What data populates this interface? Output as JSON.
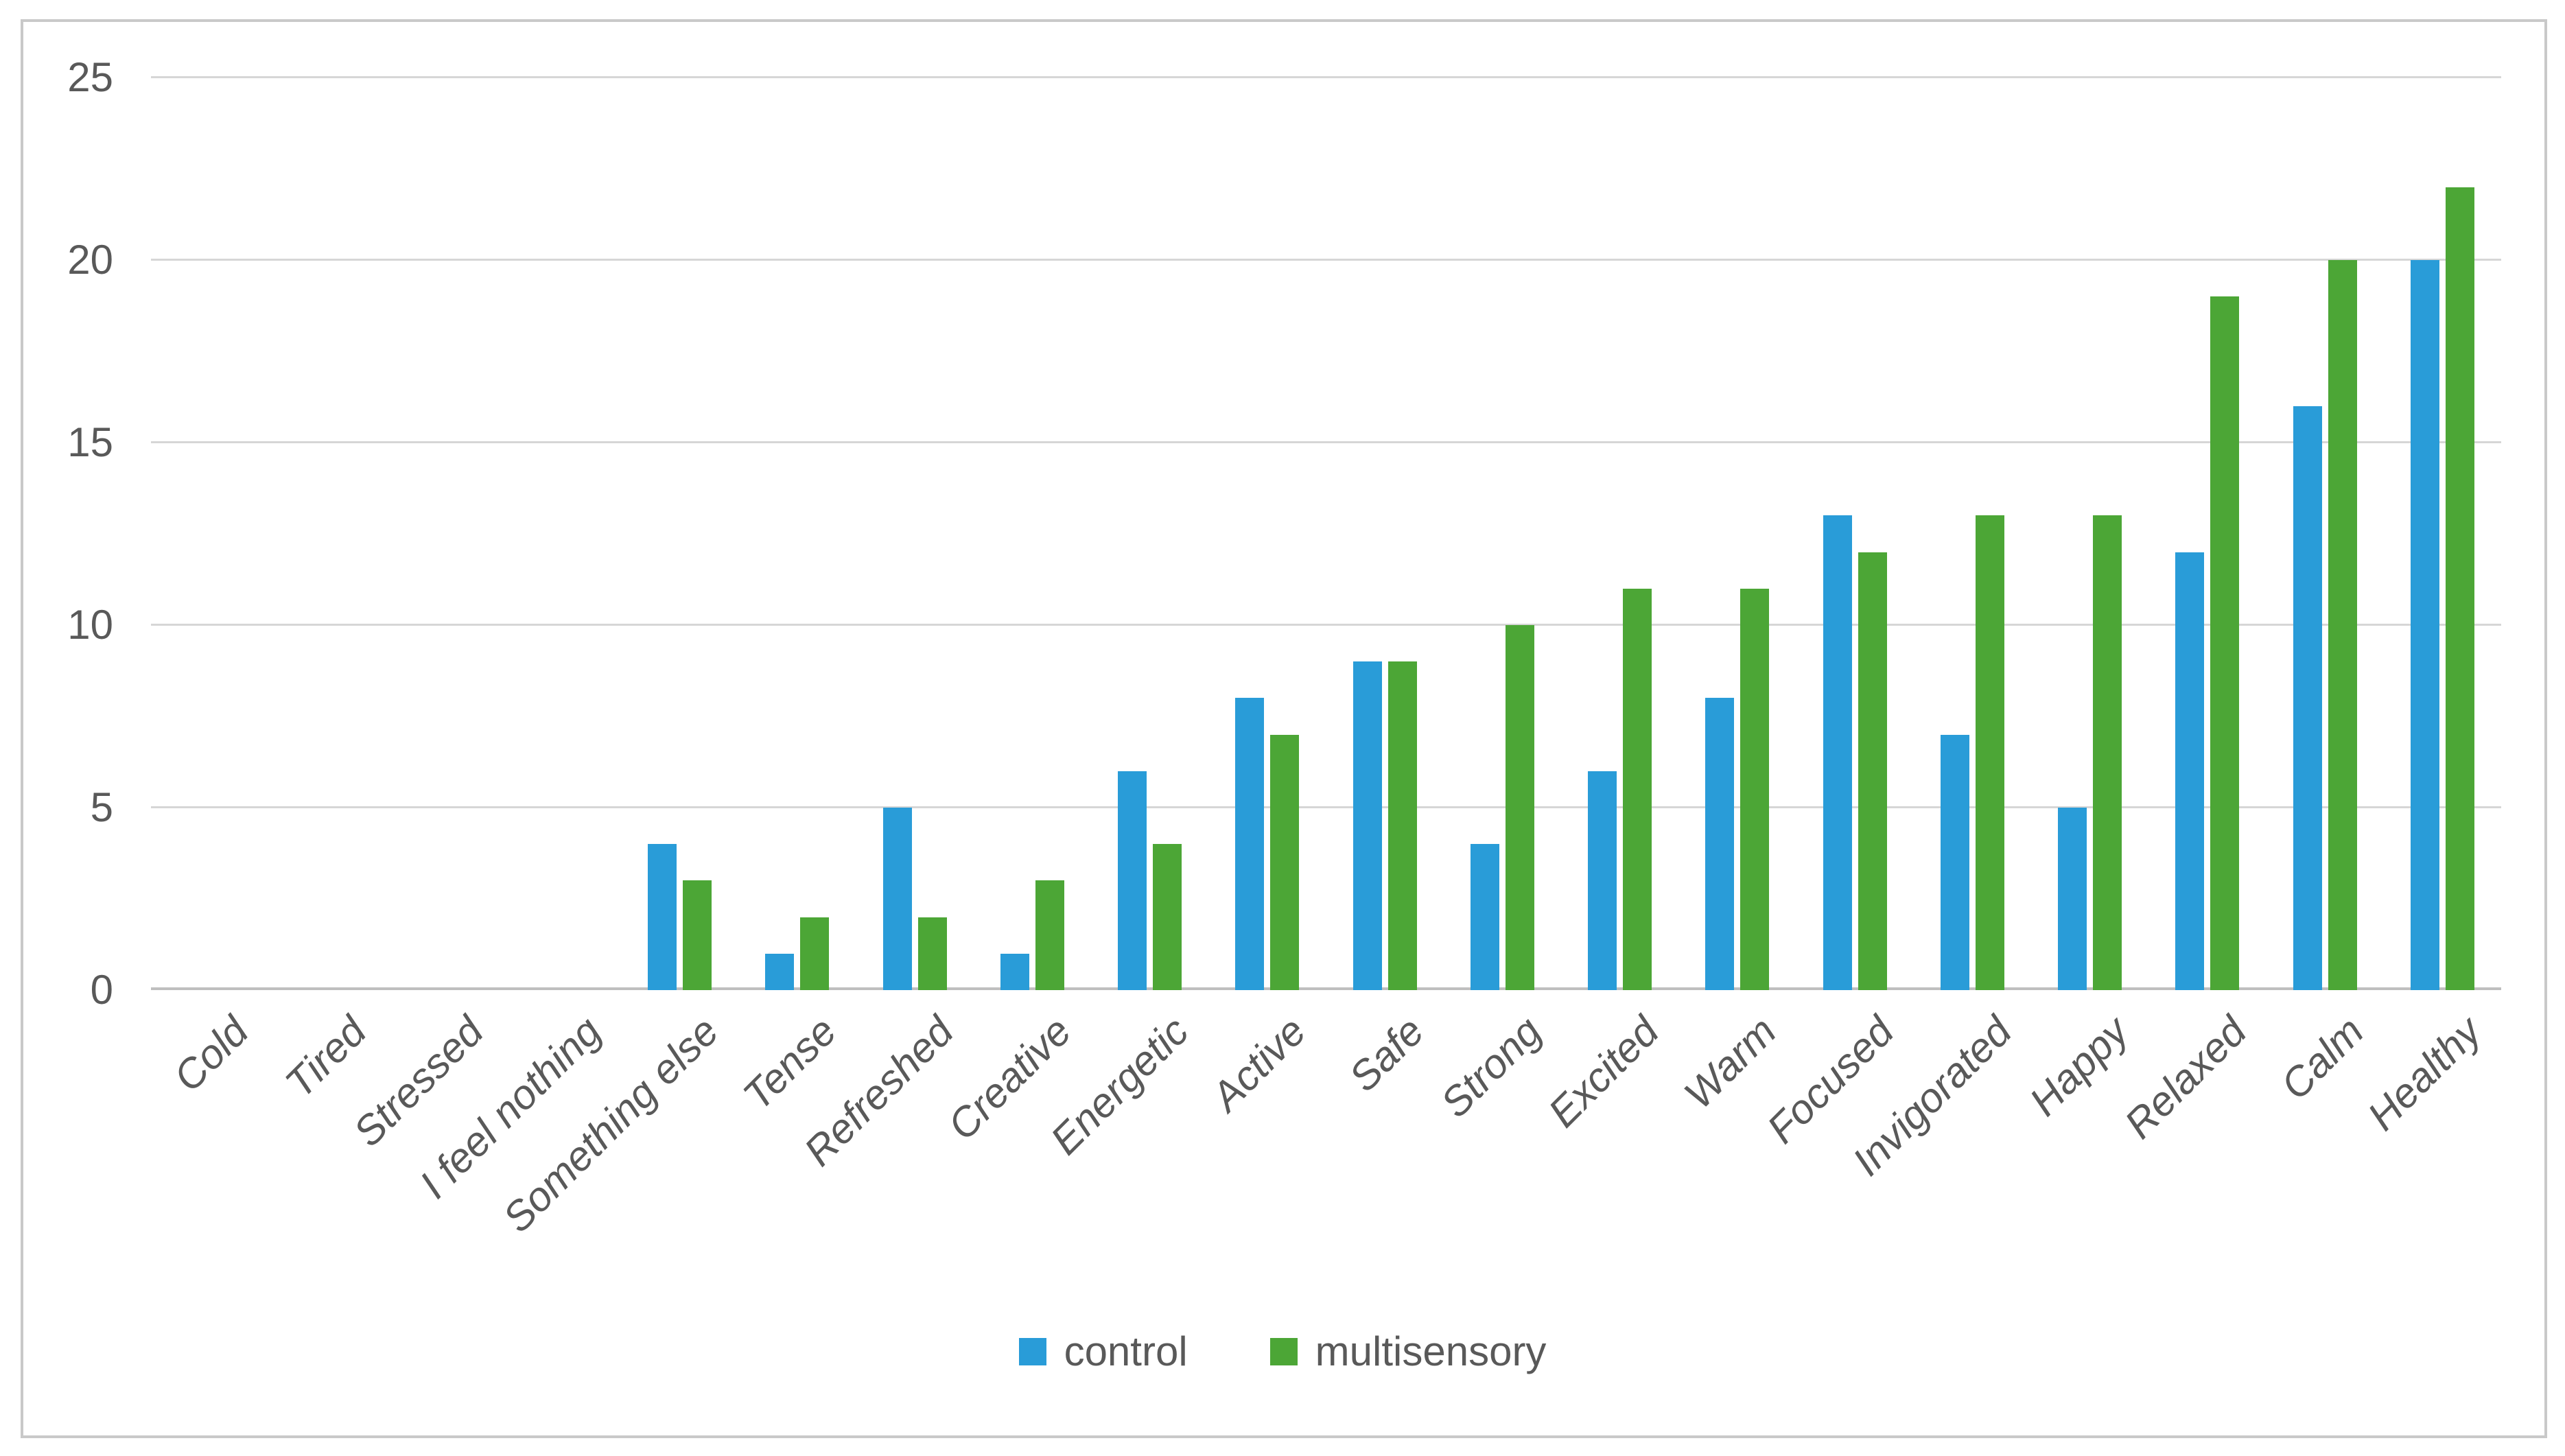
{
  "figure": {
    "background_color": "#ffffff",
    "frame_border_color": "#c9c9c9",
    "gridline_color": "#d6d6d6",
    "axis_line_color": "#bfbfbf",
    "tick_label_color": "#595959"
  },
  "chart_data": {
    "type": "bar",
    "title": "",
    "xlabel": "",
    "ylabel": "",
    "ylim": [
      0,
      25
    ],
    "yticks": [
      0,
      5,
      10,
      15,
      20,
      25
    ],
    "grid": "horizontal",
    "legend_position": "bottom",
    "categories": [
      "Cold",
      "Tired",
      "Stressed",
      "I feel nothing",
      "Something else",
      "Tense",
      "Refreshed",
      "Creative",
      "Energetic",
      "Active",
      "Safe",
      "Strong",
      "Excited",
      "Warm",
      "Focused",
      "Invigorated",
      "Happy",
      "Relaxed",
      "Calm",
      "Healthy"
    ],
    "series": [
      {
        "name": "control",
        "color": "#299cd8",
        "values": [
          0,
          0,
          0,
          0,
          4,
          1,
          5,
          1,
          6,
          8,
          9,
          4,
          6,
          8,
          13,
          7,
          5,
          12,
          16,
          20
        ]
      },
      {
        "name": "multisensory",
        "color": "#4ca636",
        "values": [
          0,
          0,
          0,
          0,
          3,
          2,
          2,
          3,
          4,
          7,
          9,
          10,
          11,
          11,
          12,
          13,
          13,
          19,
          20,
          22
        ]
      }
    ]
  }
}
